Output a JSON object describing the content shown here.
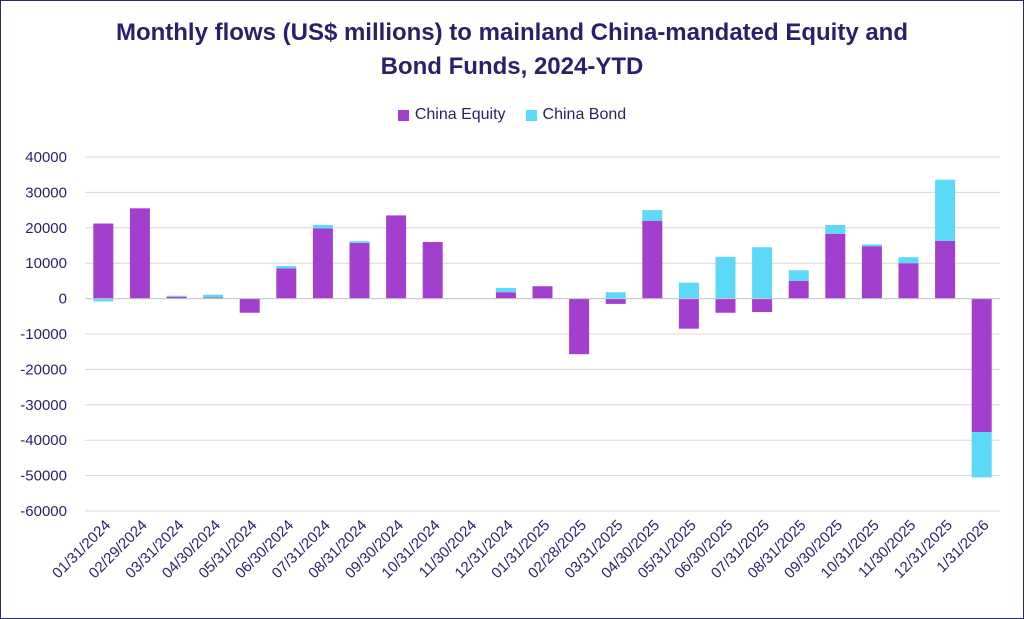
{
  "chart_data": {
    "type": "bar",
    "stacked": true,
    "title_lines": [
      "Monthly flows (US$ millions) to mainland China-mandated Equity and",
      "Bond Funds, 2024-YTD"
    ],
    "xlabel": "",
    "ylabel": "",
    "ylim": [
      -60000,
      40000
    ],
    "yticks": [
      40000,
      30000,
      20000,
      10000,
      0,
      -10000,
      -20000,
      -30000,
      -40000,
      -50000,
      -60000
    ],
    "grid": true,
    "legend_position": "top-center",
    "categories": [
      "01/31/2024",
      "02/29/2024",
      "03/31/2024",
      "04/30/2024",
      "05/31/2024",
      "06/30/2024",
      "07/31/2024",
      "08/31/2024",
      "09/30/2024",
      "10/31/2024",
      "11/30/2024",
      "12/31/2024",
      "01/31/2025",
      "02/28/2025",
      "03/31/2025",
      "04/30/2025",
      "05/31/2025",
      "06/30/2025",
      "07/31/2025",
      "08/31/2025",
      "09/30/2025",
      "10/31/2025",
      "11/30/2025",
      "12/31/2025",
      "1/31/2026"
    ],
    "series": [
      {
        "name": "China Equity",
        "color": "#a23fcf",
        "values": [
          21200,
          25500,
          500,
          300,
          -4000,
          8500,
          19800,
          15700,
          23500,
          16000,
          0,
          1800,
          3500,
          -15700,
          -1500,
          22000,
          -8500,
          -4000,
          -3800,
          5000,
          18300,
          14800,
          10000,
          16300,
          -37700
        ]
      },
      {
        "name": "China Bond",
        "color": "#5cd9f7",
        "values": [
          -800,
          0,
          300,
          800,
          0,
          700,
          1000,
          500,
          0,
          0,
          0,
          1200,
          0,
          0,
          1800,
          3000,
          4500,
          11800,
          14500,
          3000,
          2500,
          500,
          1700,
          17300,
          -12800
        ]
      }
    ]
  }
}
